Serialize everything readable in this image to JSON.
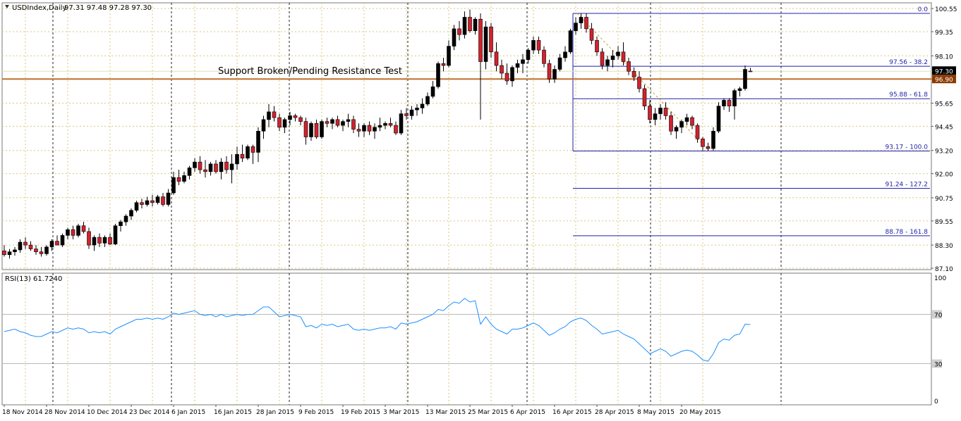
{
  "header": {
    "symbol": "USDIndex,Daily",
    "ohlc": "97.31 97.48 97.28 97.30"
  },
  "annotation": {
    "text": "Support Broken/Pending Resistance Test"
  },
  "price_panel": {
    "ylim": [
      87.1,
      100.7
    ],
    "tick_labels": [
      "100.55",
      "99.35",
      "98.10",
      "96.90",
      "95.65",
      "94.45",
      "93.20",
      "92.00",
      "90.75",
      "89.55",
      "88.30",
      "87.10"
    ],
    "last_price_label": "97.30",
    "level_label": "96.90",
    "colors": {
      "bull_body": "#000000",
      "bear_body": "#d2222d",
      "grid": "#d9c77a",
      "support_line": "#c0702a",
      "fib_line": "#2222aa",
      "last_price_bg": "#000000",
      "level_bg": "#8b3a00"
    }
  },
  "fibonacci": {
    "levels": [
      {
        "price": 100.3,
        "label": "0.0"
      },
      {
        "price": 97.56,
        "label": "97.56 - 38.2"
      },
      {
        "price": 95.88,
        "label": "95.88 - 61.8"
      },
      {
        "price": 93.17,
        "label": "93.17 - 100.0"
      },
      {
        "price": 91.24,
        "label": "91.24 - 127.2"
      },
      {
        "price": 88.78,
        "label": "88.78 - 161.8"
      }
    ]
  },
  "rsi_panel": {
    "title": "RSI(13) 61.7240",
    "ylim": [
      0,
      100
    ],
    "tick_labels": [
      "100",
      "70",
      "30",
      "0"
    ],
    "levels": [
      70,
      30
    ],
    "line_color": "#1e90ff"
  },
  "x_axis": {
    "labels": [
      "18 Nov 2014",
      "28 Nov 2014",
      "10 Dec 2014",
      "23 Dec 2014",
      "6 Jan 2015",
      "16 Jan 2015",
      "28 Jan 2015",
      "9 Feb 2015",
      "19 Feb 2015",
      "3 Mar 2015",
      "13 Mar 2015",
      "25 Mar 2015",
      "6 Apr 2015",
      "16 Apr 2015",
      "28 Apr 2015",
      "8 May 2015",
      "20 May 2015"
    ]
  },
  "chart_data": {
    "type": "candlestick",
    "x_label_dates": [
      "18 Nov 2014",
      "28 Nov 2014",
      "10 Dec 2014",
      "23 Dec 2014",
      "6 Jan 2015",
      "16 Jan 2015",
      "28 Jan 2015",
      "9 Feb 2015",
      "19 Feb 2015",
      "3 Mar 2015",
      "13 Mar 2015",
      "25 Mar 2015",
      "6 Apr 2015",
      "16 Apr 2015",
      "28 Apr 2015",
      "8 May 2015",
      "20 May 2015"
    ],
    "candles": [
      {
        "o": 88.0,
        "h": 88.3,
        "l": 87.7,
        "c": 87.8
      },
      {
        "o": 87.8,
        "h": 88.1,
        "l": 87.6,
        "c": 87.95
      },
      {
        "o": 87.95,
        "h": 88.2,
        "l": 87.75,
        "c": 88.05
      },
      {
        "o": 88.05,
        "h": 88.6,
        "l": 87.9,
        "c": 88.45
      },
      {
        "o": 88.45,
        "h": 88.7,
        "l": 88.1,
        "c": 88.3
      },
      {
        "o": 88.3,
        "h": 88.5,
        "l": 88.0,
        "c": 88.1
      },
      {
        "o": 88.1,
        "h": 88.3,
        "l": 87.8,
        "c": 87.95
      },
      {
        "o": 87.95,
        "h": 88.2,
        "l": 87.7,
        "c": 87.85
      },
      {
        "o": 87.85,
        "h": 88.3,
        "l": 87.75,
        "c": 88.2
      },
      {
        "o": 88.2,
        "h": 88.6,
        "l": 88.0,
        "c": 88.5
      },
      {
        "o": 88.5,
        "h": 88.8,
        "l": 88.3,
        "c": 88.3
      },
      {
        "o": 88.3,
        "h": 88.9,
        "l": 88.2,
        "c": 88.8
      },
      {
        "o": 88.8,
        "h": 89.2,
        "l": 88.6,
        "c": 89.1
      },
      {
        "o": 89.1,
        "h": 89.3,
        "l": 88.6,
        "c": 88.8
      },
      {
        "o": 88.8,
        "h": 89.4,
        "l": 88.7,
        "c": 89.3
      },
      {
        "o": 89.3,
        "h": 89.5,
        "l": 88.9,
        "c": 89.0
      },
      {
        "o": 89.0,
        "h": 89.2,
        "l": 88.1,
        "c": 88.3
      },
      {
        "o": 88.3,
        "h": 88.8,
        "l": 88.0,
        "c": 88.7
      },
      {
        "o": 88.7,
        "h": 88.9,
        "l": 88.2,
        "c": 88.4
      },
      {
        "o": 88.4,
        "h": 88.8,
        "l": 88.2,
        "c": 88.7
      },
      {
        "o": 88.7,
        "h": 88.9,
        "l": 88.3,
        "c": 88.35
      },
      {
        "o": 88.35,
        "h": 89.4,
        "l": 88.3,
        "c": 89.3
      },
      {
        "o": 89.3,
        "h": 89.6,
        "l": 89.0,
        "c": 89.5
      },
      {
        "o": 89.5,
        "h": 89.9,
        "l": 89.3,
        "c": 89.8
      },
      {
        "o": 89.8,
        "h": 90.2,
        "l": 89.6,
        "c": 90.1
      },
      {
        "o": 90.1,
        "h": 90.6,
        "l": 90.0,
        "c": 90.5
      },
      {
        "o": 90.5,
        "h": 90.7,
        "l": 90.2,
        "c": 90.4
      },
      {
        "o": 90.4,
        "h": 90.8,
        "l": 90.3,
        "c": 90.6
      },
      {
        "o": 90.6,
        "h": 90.9,
        "l": 90.3,
        "c": 90.5
      },
      {
        "o": 90.5,
        "h": 90.9,
        "l": 90.4,
        "c": 90.8
      },
      {
        "o": 90.8,
        "h": 91.0,
        "l": 90.3,
        "c": 90.4
      },
      {
        "o": 90.4,
        "h": 91.2,
        "l": 90.3,
        "c": 91.0
      },
      {
        "o": 91.0,
        "h": 92.1,
        "l": 90.9,
        "c": 91.8
      },
      {
        "o": 91.8,
        "h": 92.2,
        "l": 91.4,
        "c": 91.6
      },
      {
        "o": 91.6,
        "h": 92.1,
        "l": 91.5,
        "c": 91.9
      },
      {
        "o": 91.9,
        "h": 92.4,
        "l": 91.7,
        "c": 92.3
      },
      {
        "o": 92.3,
        "h": 92.8,
        "l": 92.1,
        "c": 92.6
      },
      {
        "o": 92.6,
        "h": 92.9,
        "l": 92.0,
        "c": 92.2
      },
      {
        "o": 92.2,
        "h": 92.7,
        "l": 91.8,
        "c": 92.1
      },
      {
        "o": 92.1,
        "h": 92.6,
        "l": 91.9,
        "c": 92.5
      },
      {
        "o": 92.5,
        "h": 92.7,
        "l": 92.0,
        "c": 92.1
      },
      {
        "o": 92.1,
        "h": 92.8,
        "l": 91.7,
        "c": 92.6
      },
      {
        "o": 92.6,
        "h": 92.9,
        "l": 92.0,
        "c": 92.2
      },
      {
        "o": 92.2,
        "h": 93.0,
        "l": 91.5,
        "c": 92.5
      },
      {
        "o": 92.5,
        "h": 93.4,
        "l": 92.2,
        "c": 93.0
      },
      {
        "o": 93.0,
        "h": 93.5,
        "l": 92.6,
        "c": 92.8
      },
      {
        "o": 92.8,
        "h": 93.5,
        "l": 92.7,
        "c": 93.4
      },
      {
        "o": 93.4,
        "h": 93.5,
        "l": 92.5,
        "c": 93.1
      },
      {
        "o": 93.1,
        "h": 94.4,
        "l": 92.6,
        "c": 94.2
      },
      {
        "o": 94.2,
        "h": 95.0,
        "l": 93.8,
        "c": 94.8
      },
      {
        "o": 94.8,
        "h": 95.6,
        "l": 94.4,
        "c": 95.2
      },
      {
        "o": 95.2,
        "h": 95.5,
        "l": 94.7,
        "c": 94.9
      },
      {
        "o": 94.9,
        "h": 95.1,
        "l": 94.2,
        "c": 94.4
      },
      {
        "o": 94.4,
        "h": 94.9,
        "l": 94.1,
        "c": 94.8
      },
      {
        "o": 94.8,
        "h": 95.2,
        "l": 94.5,
        "c": 95.0
      },
      {
        "o": 95.0,
        "h": 95.1,
        "l": 94.7,
        "c": 94.9
      },
      {
        "o": 94.9,
        "h": 95.0,
        "l": 94.5,
        "c": 94.7
      },
      {
        "o": 94.7,
        "h": 94.9,
        "l": 93.5,
        "c": 93.9
      },
      {
        "o": 93.9,
        "h": 94.7,
        "l": 93.7,
        "c": 94.6
      },
      {
        "o": 94.6,
        "h": 94.8,
        "l": 93.8,
        "c": 93.9
      },
      {
        "o": 93.9,
        "h": 94.8,
        "l": 93.8,
        "c": 94.7
      },
      {
        "o": 94.7,
        "h": 94.9,
        "l": 94.4,
        "c": 94.6
      },
      {
        "o": 94.6,
        "h": 94.9,
        "l": 94.3,
        "c": 94.8
      },
      {
        "o": 94.8,
        "h": 95.0,
        "l": 94.4,
        "c": 94.5
      },
      {
        "o": 94.5,
        "h": 94.8,
        "l": 94.2,
        "c": 94.7
      },
      {
        "o": 94.7,
        "h": 95.1,
        "l": 94.4,
        "c": 94.8
      },
      {
        "o": 94.8,
        "h": 95.0,
        "l": 94.1,
        "c": 94.3
      },
      {
        "o": 94.3,
        "h": 94.6,
        "l": 93.9,
        "c": 94.2
      },
      {
        "o": 94.2,
        "h": 94.6,
        "l": 93.9,
        "c": 94.5
      },
      {
        "o": 94.5,
        "h": 94.7,
        "l": 94.0,
        "c": 94.2
      },
      {
        "o": 94.2,
        "h": 94.6,
        "l": 93.8,
        "c": 94.4
      },
      {
        "o": 94.4,
        "h": 94.9,
        "l": 94.2,
        "c": 94.5
      },
      {
        "o": 94.5,
        "h": 94.7,
        "l": 94.3,
        "c": 94.6
      },
      {
        "o": 94.6,
        "h": 94.9,
        "l": 94.4,
        "c": 94.5
      },
      {
        "o": 94.5,
        "h": 94.7,
        "l": 94.0,
        "c": 94.1
      },
      {
        "o": 94.1,
        "h": 95.3,
        "l": 94.0,
        "c": 95.1
      },
      {
        "o": 95.1,
        "h": 95.4,
        "l": 94.8,
        "c": 95.0
      },
      {
        "o": 95.0,
        "h": 95.5,
        "l": 94.8,
        "c": 95.3
      },
      {
        "o": 95.3,
        "h": 95.6,
        "l": 95.0,
        "c": 95.4
      },
      {
        "o": 95.4,
        "h": 95.9,
        "l": 95.1,
        "c": 95.6
      },
      {
        "o": 95.6,
        "h": 96.2,
        "l": 95.5,
        "c": 96.0
      },
      {
        "o": 96.0,
        "h": 96.8,
        "l": 95.9,
        "c": 96.5
      },
      {
        "o": 96.5,
        "h": 97.8,
        "l": 96.4,
        "c": 97.7
      },
      {
        "o": 97.7,
        "h": 98.0,
        "l": 97.3,
        "c": 97.6
      },
      {
        "o": 97.6,
        "h": 98.9,
        "l": 97.5,
        "c": 98.6
      },
      {
        "o": 98.6,
        "h": 99.7,
        "l": 98.4,
        "c": 99.5
      },
      {
        "o": 99.5,
        "h": 99.9,
        "l": 98.9,
        "c": 99.2
      },
      {
        "o": 99.2,
        "h": 100.4,
        "l": 99.0,
        "c": 100.1
      },
      {
        "o": 100.1,
        "h": 100.5,
        "l": 99.3,
        "c": 99.4
      },
      {
        "o": 99.4,
        "h": 100.1,
        "l": 99.2,
        "c": 100.0
      },
      {
        "o": 100.0,
        "h": 100.3,
        "l": 94.8,
        "c": 97.8
      },
      {
        "o": 97.8,
        "h": 99.9,
        "l": 97.4,
        "c": 99.6
      },
      {
        "o": 99.6,
        "h": 99.8,
        "l": 98.0,
        "c": 98.3
      },
      {
        "o": 98.3,
        "h": 98.8,
        "l": 97.3,
        "c": 97.6
      },
      {
        "o": 97.6,
        "h": 97.9,
        "l": 96.9,
        "c": 97.2
      },
      {
        "o": 97.2,
        "h": 97.7,
        "l": 96.6,
        "c": 96.8
      },
      {
        "o": 96.8,
        "h": 97.6,
        "l": 96.5,
        "c": 97.5
      },
      {
        "o": 97.5,
        "h": 97.9,
        "l": 97.2,
        "c": 97.7
      },
      {
        "o": 97.7,
        "h": 98.2,
        "l": 97.2,
        "c": 97.9
      },
      {
        "o": 97.9,
        "h": 98.5,
        "l": 97.7,
        "c": 98.4
      },
      {
        "o": 98.4,
        "h": 99.1,
        "l": 98.2,
        "c": 98.9
      },
      {
        "o": 98.9,
        "h": 99.1,
        "l": 98.2,
        "c": 98.4
      },
      {
        "o": 98.4,
        "h": 98.6,
        "l": 97.5,
        "c": 97.7
      },
      {
        "o": 97.7,
        "h": 97.9,
        "l": 96.7,
        "c": 96.9
      },
      {
        "o": 96.9,
        "h": 97.6,
        "l": 96.7,
        "c": 97.4
      },
      {
        "o": 97.4,
        "h": 98.2,
        "l": 97.3,
        "c": 98.0
      },
      {
        "o": 98.0,
        "h": 98.6,
        "l": 97.8,
        "c": 98.3
      },
      {
        "o": 98.3,
        "h": 99.5,
        "l": 98.2,
        "c": 99.4
      },
      {
        "o": 99.4,
        "h": 100.1,
        "l": 99.2,
        "c": 99.8
      },
      {
        "o": 99.8,
        "h": 100.3,
        "l": 99.5,
        "c": 100.1
      },
      {
        "o": 100.1,
        "h": 100.3,
        "l": 99.3,
        "c": 99.5
      },
      {
        "o": 99.5,
        "h": 99.8,
        "l": 98.7,
        "c": 98.9
      },
      {
        "o": 98.9,
        "h": 99.1,
        "l": 98.1,
        "c": 98.3
      },
      {
        "o": 98.3,
        "h": 98.5,
        "l": 97.4,
        "c": 97.6
      },
      {
        "o": 97.6,
        "h": 98.1,
        "l": 97.3,
        "c": 97.9
      },
      {
        "o": 97.9,
        "h": 98.4,
        "l": 97.5,
        "c": 98.1
      },
      {
        "o": 98.1,
        "h": 98.6,
        "l": 97.9,
        "c": 98.3
      },
      {
        "o": 98.3,
        "h": 98.8,
        "l": 97.6,
        "c": 97.8
      },
      {
        "o": 97.8,
        "h": 98.0,
        "l": 97.1,
        "c": 97.3
      },
      {
        "o": 97.3,
        "h": 97.5,
        "l": 96.8,
        "c": 97.0
      },
      {
        "o": 97.0,
        "h": 97.3,
        "l": 96.2,
        "c": 96.4
      },
      {
        "o": 96.4,
        "h": 96.6,
        "l": 95.3,
        "c": 95.5
      },
      {
        "o": 95.5,
        "h": 95.8,
        "l": 94.6,
        "c": 94.8
      },
      {
        "o": 94.8,
        "h": 95.4,
        "l": 94.5,
        "c": 95.1
      },
      {
        "o": 95.1,
        "h": 95.6,
        "l": 94.8,
        "c": 95.4
      },
      {
        "o": 95.4,
        "h": 95.7,
        "l": 94.8,
        "c": 95.0
      },
      {
        "o": 95.0,
        "h": 95.2,
        "l": 94.0,
        "c": 94.2
      },
      {
        "o": 94.2,
        "h": 94.5,
        "l": 93.8,
        "c": 94.4
      },
      {
        "o": 94.4,
        "h": 94.8,
        "l": 94.1,
        "c": 94.7
      },
      {
        "o": 94.7,
        "h": 95.1,
        "l": 94.5,
        "c": 94.9
      },
      {
        "o": 94.9,
        "h": 95.0,
        "l": 94.3,
        "c": 94.5
      },
      {
        "o": 94.5,
        "h": 94.6,
        "l": 93.6,
        "c": 93.8
      },
      {
        "o": 93.8,
        "h": 93.9,
        "l": 93.2,
        "c": 93.4
      },
      {
        "o": 93.4,
        "h": 93.6,
        "l": 93.17,
        "c": 93.3
      },
      {
        "o": 93.3,
        "h": 94.4,
        "l": 93.2,
        "c": 94.2
      },
      {
        "o": 94.2,
        "h": 95.7,
        "l": 94.1,
        "c": 95.5
      },
      {
        "o": 95.5,
        "h": 95.9,
        "l": 95.3,
        "c": 95.8
      },
      {
        "o": 95.8,
        "h": 95.9,
        "l": 95.2,
        "c": 95.5
      },
      {
        "o": 95.5,
        "h": 96.4,
        "l": 94.8,
        "c": 96.3
      },
      {
        "o": 96.3,
        "h": 96.5,
        "l": 96.0,
        "c": 96.4
      },
      {
        "o": 96.4,
        "h": 97.6,
        "l": 96.3,
        "c": 97.4
      },
      {
        "o": 97.31,
        "h": 97.48,
        "l": 97.28,
        "c": 97.3
      }
    ],
    "rsi": [
      56,
      57,
      58,
      56,
      55,
      53,
      52,
      52,
      54,
      56,
      55,
      57,
      59,
      58,
      59,
      58,
      55,
      56,
      55,
      56,
      54,
      58,
      60,
      62,
      64,
      66,
      66,
      67,
      66,
      67,
      66,
      68,
      71,
      70,
      71,
      72,
      73,
      70,
      69,
      70,
      68,
      70,
      68,
      69,
      70,
      69,
      70,
      70,
      73,
      76,
      76,
      72,
      68,
      69,
      70,
      69,
      68,
      60,
      61,
      59,
      62,
      61,
      62,
      60,
      61,
      62,
      58,
      57,
      58,
      57,
      58,
      59,
      59,
      60,
      58,
      63,
      62,
      63,
      64,
      66,
      68,
      70,
      74,
      73,
      77,
      80,
      79,
      83,
      80,
      81,
      62,
      68,
      62,
      58,
      56,
      54,
      58,
      58,
      59,
      61,
      63,
      61,
      57,
      53,
      55,
      58,
      60,
      64,
      66,
      67,
      65,
      61,
      58,
      54,
      55,
      56,
      57,
      54,
      52,
      50,
      46,
      42,
      38,
      40,
      42,
      40,
      36,
      38,
      40,
      41,
      40,
      37,
      33,
      32,
      38,
      47,
      50,
      49,
      53,
      54,
      62,
      61.724
    ],
    "title": "",
    "xlabel": "",
    "ylabel": ""
  }
}
